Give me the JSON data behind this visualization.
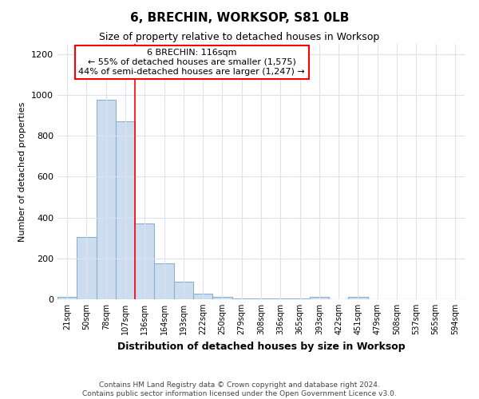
{
  "title": "6, BRECHIN, WORKSOP, S81 0LB",
  "subtitle": "Size of property relative to detached houses in Worksop",
  "xlabel": "Distribution of detached houses by size in Worksop",
  "ylabel": "Number of detached properties",
  "footnote": "Contains HM Land Registry data © Crown copyright and database right 2024.\nContains public sector information licensed under the Open Government Licence v3.0.",
  "bins": [
    "21sqm",
    "50sqm",
    "78sqm",
    "107sqm",
    "136sqm",
    "164sqm",
    "193sqm",
    "222sqm",
    "250sqm",
    "279sqm",
    "308sqm",
    "336sqm",
    "365sqm",
    "393sqm",
    "422sqm",
    "451sqm",
    "479sqm",
    "508sqm",
    "537sqm",
    "565sqm",
    "594sqm"
  ],
  "values": [
    10,
    305,
    975,
    870,
    370,
    175,
    85,
    27,
    10,
    5,
    5,
    5,
    5,
    10,
    0,
    10,
    0,
    0,
    0,
    0,
    0
  ],
  "bar_color": "#ccddf0",
  "bar_edge_color": "#8ab0cc",
  "red_line_x": 3.5,
  "annotation_title": "6 BRECHIN: 116sqm",
  "annotation_line1": "← 55% of detached houses are smaller (1,575)",
  "annotation_line2": "44% of semi-detached houses are larger (1,247) →",
  "annotation_box_color": "white",
  "annotation_box_edge": "red",
  "ylim": [
    0,
    1250
  ],
  "yticks": [
    0,
    200,
    400,
    600,
    800,
    1000,
    1200
  ],
  "background_color": "#ffffff",
  "grid_color": "#e0e0ee"
}
